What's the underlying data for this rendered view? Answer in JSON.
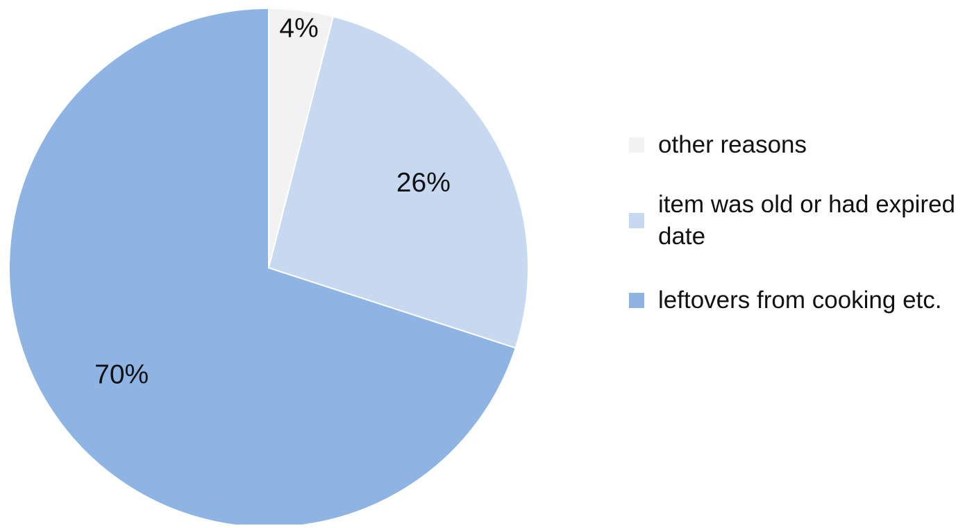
{
  "chart_data": {
    "type": "pie",
    "title": "",
    "slices": [
      {
        "label": "other reasons",
        "value": 4,
        "display": "4%",
        "color": "#f2f2f2"
      },
      {
        "label": "item was old or had expired date",
        "value": 26,
        "display": "26%",
        "color": "#c6d9f1"
      },
      {
        "label": "leftovers from cooking etc.",
        "value": 70,
        "display": "70%",
        "color": "#8eb4e3"
      }
    ],
    "start_angle": "12 o'clock",
    "direction": "clockwise",
    "legend_position": "right"
  },
  "legend": {
    "items": [
      {
        "label": "other reasons",
        "color": "#f2f2f2"
      },
      {
        "label": "item was old or had expired date",
        "color": "#c6d9f1"
      },
      {
        "label": "leftovers from cooking etc.",
        "color": "#8eb4e3"
      }
    ]
  }
}
